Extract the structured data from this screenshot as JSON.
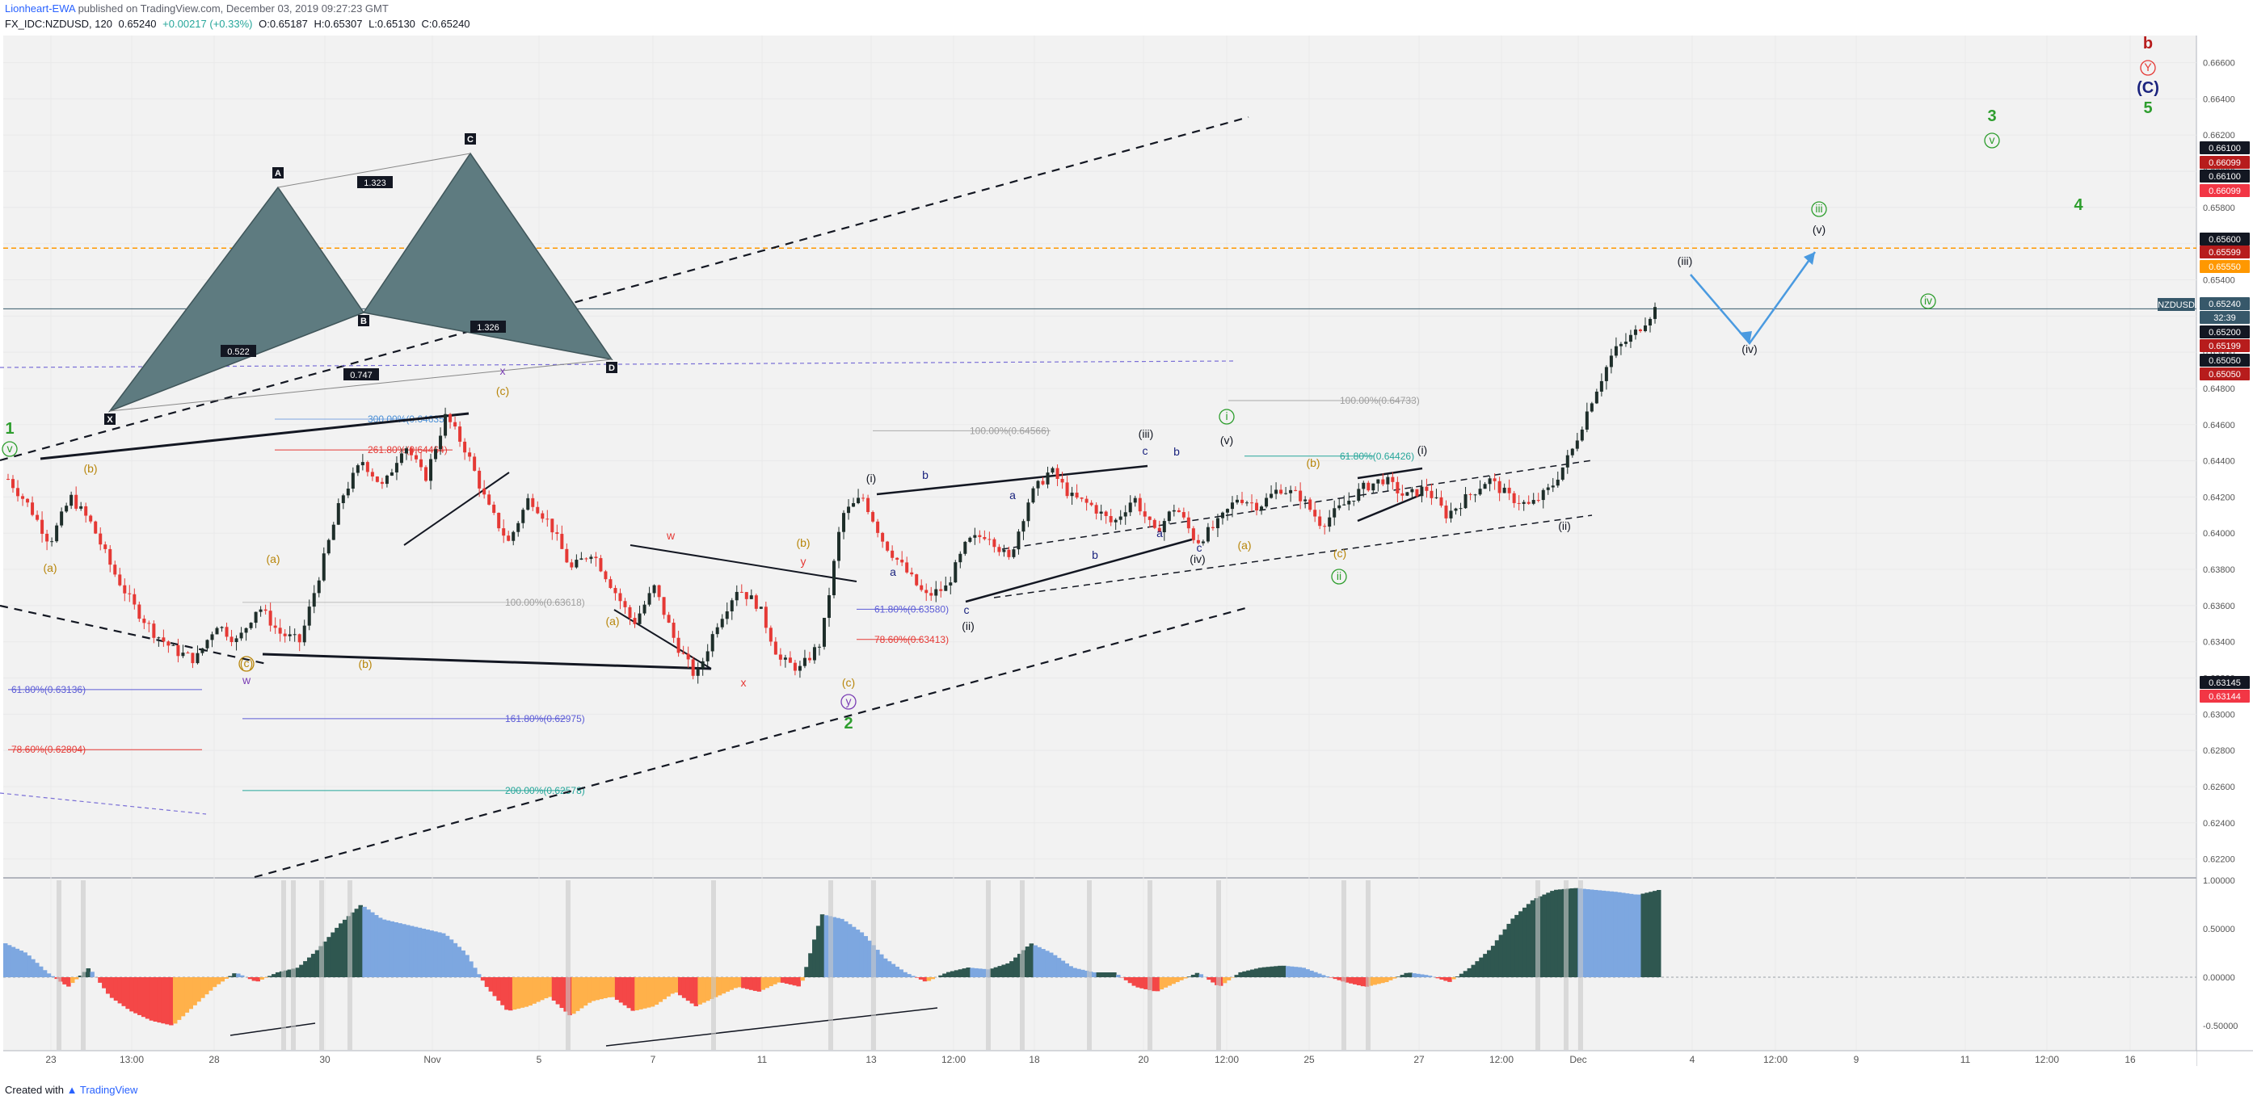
{
  "header": {
    "author": "Lionheart-EWA",
    "published_text": "published on TradingView.com, December 03, 2019 09:27:23 GMT",
    "symbol": "FX_IDC:NZDUSD, 120",
    "last": "0.65240",
    "change": "+0.00217 (+0.33%)",
    "open": "O:0.65187",
    "high": "H:0.65307",
    "low": "L:0.65130",
    "close": "C:0.65240"
  },
  "footer": {
    "created_with": "Created with",
    "brand": "TradingView"
  },
  "colors": {
    "up_candle": "#1e2e2a",
    "down_candle": "#e53935",
    "grid": "#e9e9ea",
    "background": "#f2f2f2",
    "osc_pos_dark": "#2f5750",
    "osc_pos_light": "#7da7e0",
    "osc_neg_red": "#f44747",
    "osc_neg_orange": "#ffb14a",
    "harmonic_fill": "#5e7b80"
  },
  "price_axis": {
    "ticks": [
      "0.66600",
      "0.66400",
      "0.66200",
      "0.66000",
      "0.65800",
      "0.65600",
      "0.65400",
      "0.65200",
      "0.65000",
      "0.64800",
      "0.64600",
      "0.64400",
      "0.64200",
      "0.64000",
      "0.63800",
      "0.63600",
      "0.63400",
      "0.63200",
      "0.63000",
      "0.62800",
      "0.62600",
      "0.62400",
      "0.62200"
    ],
    "tags": [
      {
        "text": "0.66100",
        "bg": "#131722"
      },
      {
        "text": "0.66099",
        "bg": "#b71c1c"
      },
      {
        "text": "0.66100",
        "bg": "#131722"
      },
      {
        "text": "0.66099",
        "bg": "#f23645"
      },
      {
        "text": "0.65600",
        "bg": "#131722"
      },
      {
        "text": "0.65599",
        "bg": "#b71c1c"
      },
      {
        "text": "0.65550",
        "bg": "#ff9800"
      },
      {
        "text": "0.65240",
        "bg": "#37586a"
      },
      {
        "text": "32:39",
        "bg": "#37586a"
      },
      {
        "text": "0.65200",
        "bg": "#131722"
      },
      {
        "text": "0.65199",
        "bg": "#b71c1c"
      },
      {
        "text": "0.65050",
        "bg": "#131722"
      },
      {
        "text": "0.65050",
        "bg": "#b71c1c"
      },
      {
        "text": "0.63145",
        "bg": "#131722"
      },
      {
        "text": "0.63144",
        "bg": "#f23645"
      }
    ],
    "symbol_tag": "NZDUSD"
  },
  "osc_axis": {
    "ticks": [
      "1.00000",
      "0.50000",
      "0.00000",
      "-0.50000"
    ]
  },
  "time_axis": {
    "ticks": [
      "23",
      "13:00",
      "28",
      "30",
      "Nov",
      "5",
      "7",
      "11",
      "13",
      "12:00",
      "18",
      "20",
      "12:00",
      "25",
      "27",
      "12:00",
      "Dec",
      "4",
      "12:00",
      "9",
      "11",
      "12:00",
      "16"
    ]
  },
  "fib_labels": [
    {
      "text": "300.00%(0.64635)",
      "color": "#4a8fd6"
    },
    {
      "text": "261.80%(0.64464)",
      "color": "#e53935"
    },
    {
      "text": "100.00%(0.63618)",
      "color": "#9e9e9e"
    },
    {
      "text": "61.80%(0.63136)",
      "color": "#5b5bd6"
    },
    {
      "text": "78.60%(0.62804)",
      "color": "#e53935"
    },
    {
      "text": "161.80%(0.62975)",
      "color": "#5b5bd6"
    },
    {
      "text": "200.00%(0.62578)",
      "color": "#26a69a"
    },
    {
      "text": "100.00%(0.64566)",
      "color": "#9e9e9e"
    },
    {
      "text": "61.80%(0.63580)",
      "color": "#5b5bd6"
    },
    {
      "text": "78.60%(0.63413)",
      "color": "#e53935"
    },
    {
      "text": "100.00%(0.64733)",
      "color": "#9e9e9e"
    },
    {
      "text": "61.80%(0.64426)",
      "color": "#26a69a"
    }
  ],
  "harmonic": {
    "points": [
      "X",
      "A",
      "B",
      "C",
      "D"
    ],
    "ratios": [
      "1.323",
      "0.522",
      "1.326",
      "0.747"
    ]
  },
  "wave_labels": [
    {
      "text": "1",
      "color": "#2e9e2e"
    },
    {
      "text": "v",
      "color": "#2e9e2e"
    },
    {
      "text": "(b)",
      "color": "#b8860b"
    },
    {
      "text": "(a)",
      "color": "#b8860b"
    },
    {
      "text": "(a)",
      "color": "#b8860b"
    },
    {
      "text": "(c)",
      "color": "#b8860b"
    },
    {
      "text": "w",
      "color": "#7b3fb5"
    },
    {
      "text": "(b)",
      "color": "#b8860b"
    },
    {
      "text": "(c)",
      "color": "#b8860b"
    },
    {
      "text": "x",
      "color": "#7b3fb5"
    },
    {
      "text": "w",
      "color": "#e53935"
    },
    {
      "text": "(a)",
      "color": "#b8860b"
    },
    {
      "text": "x",
      "color": "#e53935"
    },
    {
      "text": "(b)",
      "color": "#b8860b"
    },
    {
      "text": "y",
      "color": "#e53935"
    },
    {
      "text": "(c)",
      "color": "#b8860b"
    },
    {
      "text": "y",
      "color": "#7b3fb5"
    },
    {
      "text": "2",
      "color": "#2e9e2e"
    },
    {
      "text": "(i)",
      "color": "#131722"
    },
    {
      "text": "b",
      "color": "#1a237e"
    },
    {
      "text": "a",
      "color": "#1a237e"
    },
    {
      "text": "c",
      "color": "#1a237e"
    },
    {
      "text": "(ii)",
      "color": "#131722"
    },
    {
      "text": "a",
      "color": "#1a237e"
    },
    {
      "text": "b",
      "color": "#1a237e"
    },
    {
      "text": "(iii)",
      "color": "#131722"
    },
    {
      "text": "c",
      "color": "#1a237e"
    },
    {
      "text": "b",
      "color": "#1a237e"
    },
    {
      "text": "a",
      "color": "#1a237e"
    },
    {
      "text": "c",
      "color": "#1a237e"
    },
    {
      "text": "(iv)",
      "color": "#131722"
    },
    {
      "text": "(v)",
      "color": "#131722"
    },
    {
      "text": "i",
      "color": "#2e9e2e"
    },
    {
      "text": "(b)",
      "color": "#b8860b"
    },
    {
      "text": "(a)",
      "color": "#b8860b"
    },
    {
      "text": "(c)",
      "color": "#b8860b"
    },
    {
      "text": "ii",
      "color": "#2e9e2e"
    },
    {
      "text": "(i)",
      "color": "#131722"
    },
    {
      "text": "(ii)",
      "color": "#131722"
    },
    {
      "text": "(iii)",
      "color": "#131722"
    },
    {
      "text": "(iv)",
      "color": "#131722"
    },
    {
      "text": "(v)",
      "color": "#131722"
    },
    {
      "text": "iii",
      "color": "#2e9e2e"
    },
    {
      "text": "iv",
      "color": "#2e9e2e"
    },
    {
      "text": "v",
      "color": "#2e9e2e"
    },
    {
      "text": "3",
      "color": "#2e9e2e"
    },
    {
      "text": "4",
      "color": "#2e9e2e"
    },
    {
      "text": "5",
      "color": "#2e9e2e"
    },
    {
      "text": "(C)",
      "color": "#1a237e"
    },
    {
      "text": "Y",
      "color": "#e53935"
    },
    {
      "text": "b",
      "color": "#b71c1c"
    }
  ],
  "chart_data": {
    "type": "candlestick",
    "symbol": "NZDUSD",
    "interval": "120",
    "ylim": [
      0.621,
      0.6675
    ],
    "osc_ylim": [
      -0.75,
      1.0
    ],
    "close_path": [
      [
        0.643
      ],
      [
        0.6415
      ],
      [
        0.6395
      ],
      [
        0.642
      ],
      [
        0.6405
      ],
      [
        0.638
      ],
      [
        0.636
      ],
      [
        0.6345
      ],
      [
        0.6335
      ],
      [
        0.633
      ],
      [
        0.635
      ],
      [
        0.634
      ],
      [
        0.636
      ],
      [
        0.6345
      ],
      [
        0.634
      ],
      [
        0.638
      ],
      [
        0.642
      ],
      [
        0.644
      ],
      [
        0.6425
      ],
      [
        0.645
      ],
      [
        0.643
      ],
      [
        0.6465
      ],
      [
        0.6445
      ],
      [
        0.6415
      ],
      [
        0.6395
      ],
      [
        0.642
      ],
      [
        0.6405
      ],
      [
        0.638
      ],
      [
        0.639
      ],
      [
        0.637
      ],
      [
        0.635
      ],
      [
        0.637
      ],
      [
        0.634
      ],
      [
        0.632
      ],
      [
        0.635
      ],
      [
        0.637
      ],
      [
        0.636
      ],
      [
        0.633
      ],
      [
        0.6325
      ],
      [
        0.634
      ],
      [
        0.641
      ],
      [
        0.642
      ],
      [
        0.6395
      ],
      [
        0.638
      ],
      [
        0.6365
      ],
      [
        0.637
      ],
      [
        0.6395
      ],
      [
        0.64
      ],
      [
        0.6385
      ],
      [
        0.642
      ],
      [
        0.6435
      ],
      [
        0.642
      ],
      [
        0.6415
      ],
      [
        0.6405
      ],
      [
        0.642
      ],
      [
        0.64
      ],
      [
        0.6415
      ],
      [
        0.6395
      ],
      [
        0.6405
      ],
      [
        0.642
      ],
      [
        0.6415
      ],
      [
        0.6425
      ],
      [
        0.642
      ],
      [
        0.6405
      ],
      [
        0.6415
      ],
      [
        0.6425
      ],
      [
        0.643
      ],
      [
        0.642
      ],
      [
        0.6425
      ],
      [
        0.641
      ],
      [
        0.642
      ],
      [
        0.643
      ],
      [
        0.642
      ],
      [
        0.6415
      ],
      [
        0.6425
      ],
      [
        0.6445
      ],
      [
        0.6475
      ],
      [
        0.65
      ],
      [
        0.651
      ],
      [
        0.6524
      ]
    ],
    "osc_values": [
      0.35,
      0.25,
      0.05,
      -0.1,
      0.1,
      -0.2,
      -0.35,
      -0.45,
      -0.5,
      -0.3,
      -0.1,
      0.05,
      -0.05,
      0.05,
      0.1,
      0.3,
      0.55,
      0.75,
      0.6,
      0.55,
      0.5,
      0.45,
      0.25,
      -0.1,
      -0.35,
      -0.3,
      -0.2,
      -0.4,
      -0.25,
      -0.2,
      -0.35,
      -0.3,
      -0.15,
      -0.3,
      -0.2,
      -0.1,
      -0.15,
      -0.05,
      -0.1,
      0.65,
      0.6,
      0.45,
      0.2,
      0.05,
      -0.05,
      0.05,
      0.1,
      0.08,
      0.15,
      0.35,
      0.25,
      0.1,
      0.05,
      0.05,
      -0.1,
      -0.15,
      -0.05,
      0.05,
      -0.1,
      0.05,
      0.1,
      0.12,
      0.1,
      0.02,
      -0.05,
      -0.1,
      -0.05,
      0.05,
      0.02,
      -0.05,
      0.1,
      0.3,
      0.6,
      0.8,
      0.9,
      0.92,
      0.9,
      0.88,
      0.85,
      0.9
    ]
  }
}
